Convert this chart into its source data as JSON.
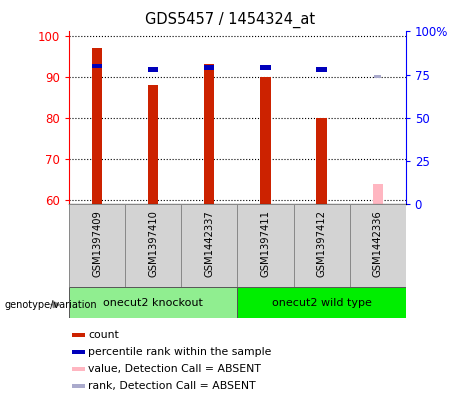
{
  "title": "GDS5457 / 1454324_at",
  "samples": [
    "GSM1397409",
    "GSM1397410",
    "GSM1442337",
    "GSM1397411",
    "GSM1397412",
    "GSM1442336"
  ],
  "groups": [
    {
      "name": "onecut2 knockout",
      "indices": [
        0,
        1,
        2
      ],
      "color": "#90EE90"
    },
    {
      "name": "onecut2 wild type",
      "indices": [
        3,
        4,
        5
      ],
      "color": "#00EE00"
    }
  ],
  "count_values": [
    97,
    88,
    93,
    90,
    80,
    null
  ],
  "rank_values": [
    80,
    78,
    79,
    79,
    78,
    null
  ],
  "absent_value": 64,
  "absent_rank": 74,
  "absent_sample_idx": 5,
  "ylim_left": [
    59,
    101
  ],
  "yticks_left": [
    60,
    70,
    80,
    90,
    100
  ],
  "ytick_labels_right": [
    "0",
    "25",
    "50",
    "75",
    "100%"
  ],
  "yticks_right_vals": [
    0,
    25,
    50,
    75,
    100
  ],
  "bar_color_red": "#CC2200",
  "bar_color_blue": "#0000BB",
  "bar_color_pink": "#FFB6C1",
  "bar_color_lightblue": "#AAAACC",
  "bar_width": 0.18,
  "bg_color": "#D3D3D3",
  "knockout_color": "#90EE90",
  "wildtype_color": "#00EE00",
  "legend_items": [
    {
      "label": "count",
      "color": "#CC2200"
    },
    {
      "label": "percentile rank within the sample",
      "color": "#0000BB"
    },
    {
      "label": "value, Detection Call = ABSENT",
      "color": "#FFB6C1"
    },
    {
      "label": "rank, Detection Call = ABSENT",
      "color": "#AAAACC"
    }
  ]
}
